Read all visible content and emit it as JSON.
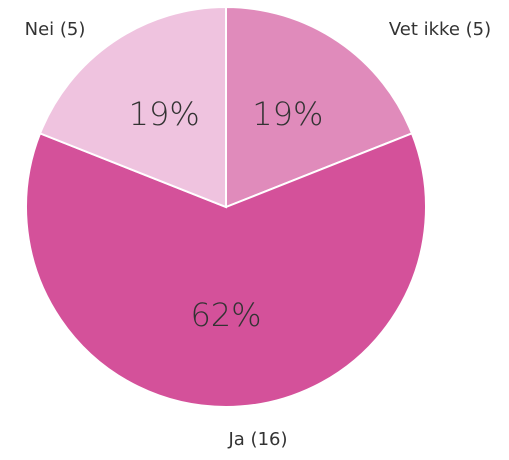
{
  "chart_data": {
    "type": "pie",
    "categories": [
      "Vet ikke (5)",
      "Ja (16)",
      "Nei (5)"
    ],
    "values": [
      19,
      62,
      19
    ],
    "value_labels": [
      "19%",
      "62%",
      "19%"
    ],
    "colors": [
      "#e08bbb",
      "#d4519a",
      "#efc3df"
    ]
  }
}
